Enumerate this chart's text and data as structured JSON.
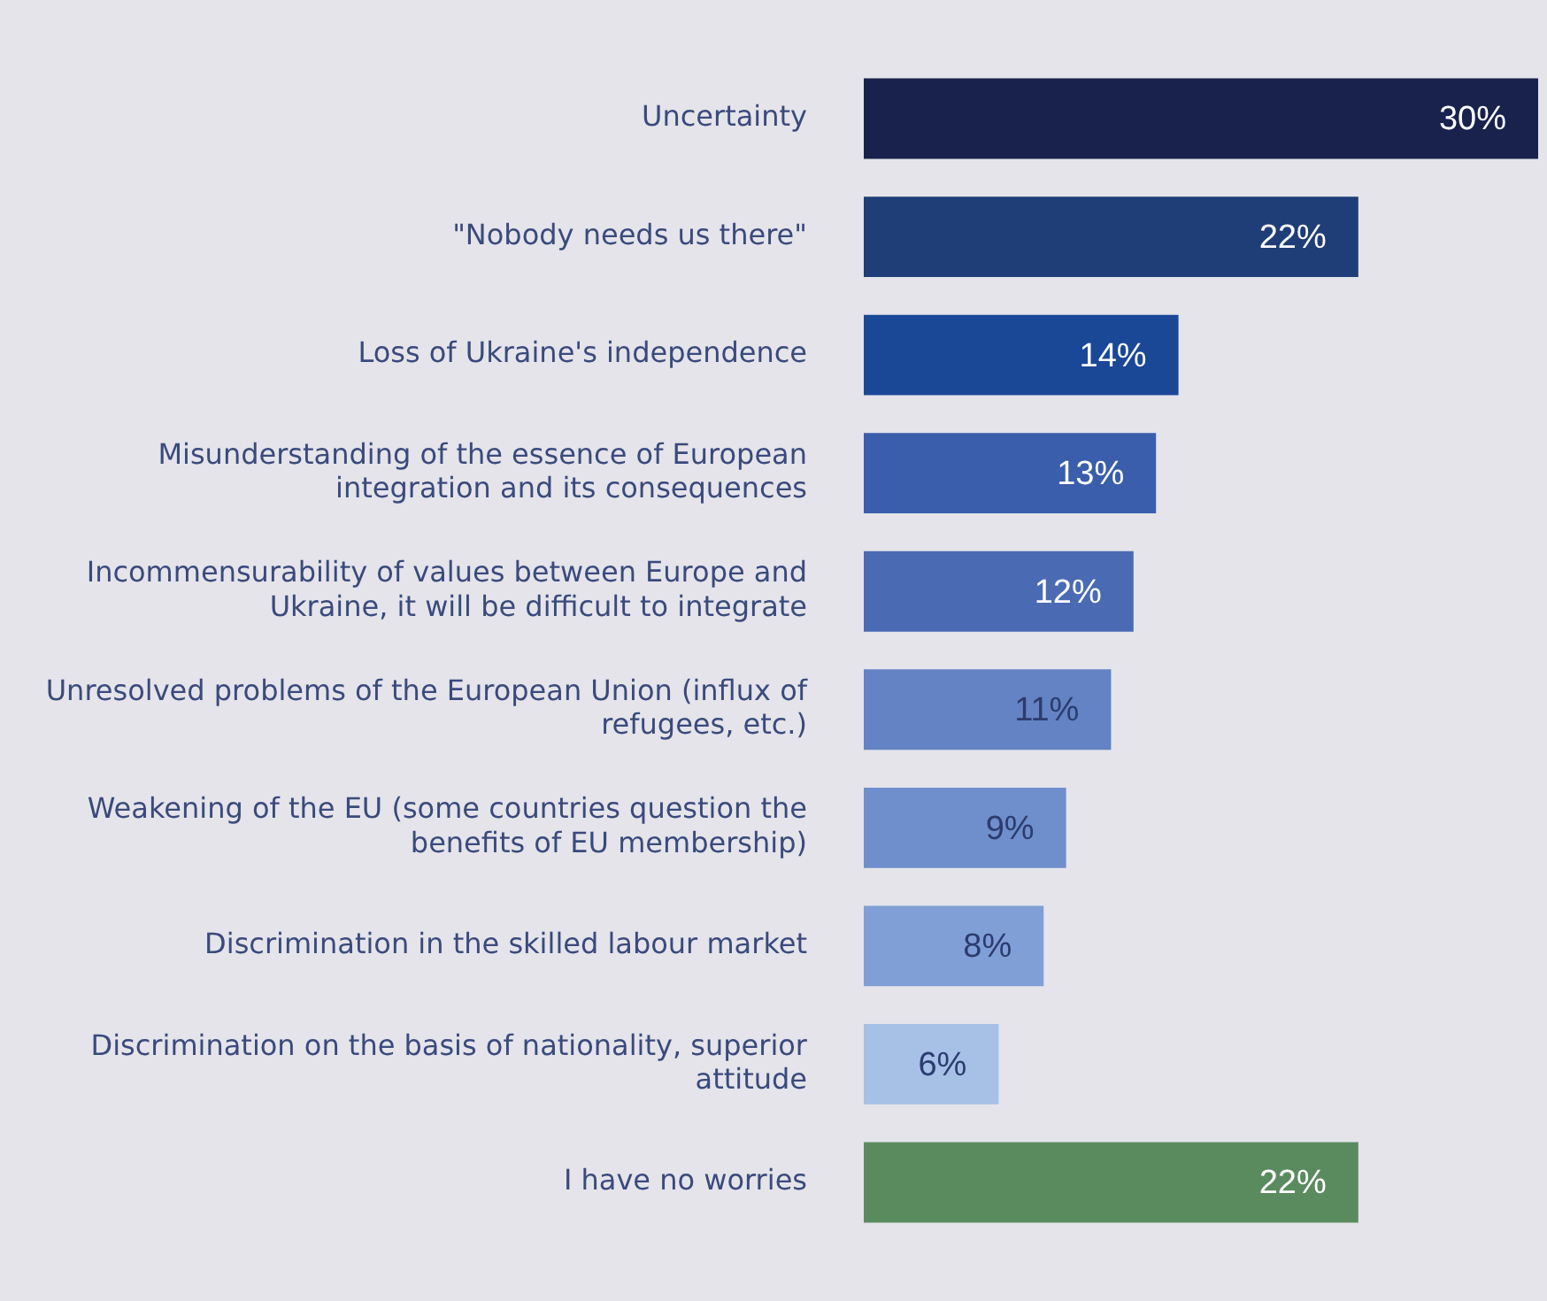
{
  "chart_data": {
    "type": "bar",
    "orientation": "horizontal",
    "categories": [
      "Uncertainty",
      "\"Nobody needs us there\"",
      "Loss of Ukraine's independence",
      "Misunderstanding of the essence of European integration and its consequences",
      "Incommensurability of values between Europe and Ukraine, it will be difficult to integrate",
      "Unresolved problems of the European Union (influx of refugees, etc.)",
      "Weakening of the EU (some countries question the benefits of EU membership)",
      "Discrimination in the skilled labour market",
      "Discrimination on the basis of nationality, superior attitude",
      "I have no worries"
    ],
    "values": [
      30,
      22,
      14,
      13,
      12,
      11,
      9,
      8,
      6,
      22
    ],
    "value_labels": [
      "30%",
      "22%",
      "14%",
      "13%",
      "12%",
      "11%",
      "9%",
      "8%",
      "6%",
      "22%"
    ],
    "colors": [
      "#18224d",
      "#1f3e78",
      "#1a4897",
      "#3a5eab",
      "#4a6bb4",
      "#6383c4",
      "#6f8ecc",
      "#7f9fd6",
      "#a7c0e6",
      "#5a8b5f"
    ],
    "xlim": [
      0,
      30
    ],
    "tick_labels": "y",
    "grid": false,
    "legend": false
  }
}
